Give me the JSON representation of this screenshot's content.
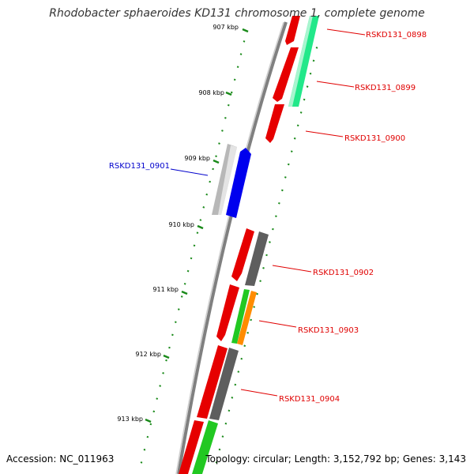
{
  "title": "Rhodobacter sphaeroides KD131 chromosome 1, complete genome",
  "footer": {
    "accession": "Accession: NC_011963",
    "stats": "Topology: circular; Length: 3,152,792 bp; Genes: 3,143"
  },
  "colors": {
    "backbone": "#808080",
    "tick": "#1a8a1a",
    "label_red": "#e00000",
    "label_blue": "#0000cc"
  },
  "kbp_ticks": [
    {
      "label": "907 kbp"
    },
    {
      "label": "908 kbp"
    },
    {
      "label": "909 kbp"
    },
    {
      "label": "910 kbp"
    },
    {
      "label": "911 kbp"
    },
    {
      "label": "912 kbp"
    },
    {
      "label": "913 kbp"
    }
  ],
  "genes": [
    {
      "name": "RSKD131_0898",
      "color": "#e00000"
    },
    {
      "name": "RSKD131_0899",
      "color": "#e00000"
    },
    {
      "name": "RSKD131_0900",
      "color": "#e00000"
    },
    {
      "name": "RSKD131_0901",
      "color": "#0000cc"
    },
    {
      "name": "RSKD131_0902",
      "color": "#e00000"
    },
    {
      "name": "RSKD131_0903",
      "color": "#e00000"
    },
    {
      "name": "RSKD131_0904",
      "color": "#e00000"
    }
  ]
}
